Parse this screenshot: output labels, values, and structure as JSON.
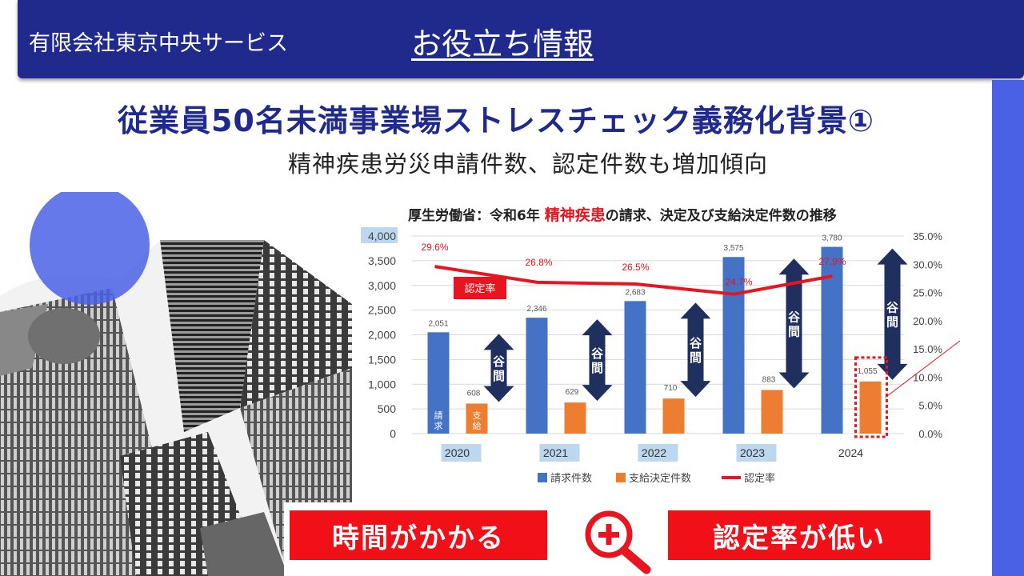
{
  "header": {
    "company": "有限会社東京中央サービス",
    "title": "お役立ち情報"
  },
  "main_title": "従業員50名未満事業場ストレスチェック義務化背景①",
  "subtitle": "精神疾患労災申請件数、認定件数も増加傾向",
  "chart_title": {
    "prefix": "厚生労働省：令和6年 ",
    "highlight": "精神疾患",
    "suffix": "の請求、決定及び支給決定件数の推移"
  },
  "chart_data": {
    "type": "bar",
    "categories": [
      "2020",
      "2021",
      "2022",
      "2023",
      "2024"
    ],
    "series": [
      {
        "name": "請求件数",
        "type": "bar",
        "color": "#4472c4",
        "values": [
          2051,
          2346,
          2683,
          3575,
          3780
        ],
        "labels": [
          "2,051",
          "2,346",
          "2,683",
          "3,575",
          "3,780"
        ]
      },
      {
        "name": "支給決定件数",
        "type": "bar",
        "color": "#ed7d31",
        "values": [
          608,
          629,
          710,
          883,
          1055
        ],
        "labels": [
          "608",
          "629",
          "710",
          "883",
          "1,055"
        ]
      },
      {
        "name": "認定率",
        "type": "line",
        "axis": "right",
        "color": "#e8141f",
        "values": [
          29.6,
          26.8,
          26.5,
          24.7,
          27.9
        ],
        "labels": [
          "29.6%",
          "26.8%",
          "26.5%",
          "24.7%",
          "27.9%"
        ]
      }
    ],
    "ylim": [
      0,
      4000
    ],
    "y2lim": [
      0,
      35
    ],
    "yticks": [
      "0",
      "500",
      "1,000",
      "1,500",
      "2,000",
      "2,500",
      "3,000",
      "3,500",
      "4,000"
    ],
    "y2ticks": [
      "0.0%",
      "5.0%",
      "10.0%",
      "15.0%",
      "20.0%",
      "25.0%",
      "30.0%",
      "35.0%"
    ],
    "gap_label": "谷間",
    "rate_tag": "認定率",
    "bar_inner_labels": {
      "claims": "請求",
      "paid": "支給"
    },
    "legend": [
      "請求件数",
      "支給決定件数",
      "認定率"
    ]
  },
  "bottom": {
    "left": "時間がかかる",
    "right": "認定率が低い"
  },
  "colors": {
    "header": "#1f2a8c",
    "accent": "#4a61e6",
    "red": "#f11018",
    "gap_arrow": "#1f2f5e"
  }
}
